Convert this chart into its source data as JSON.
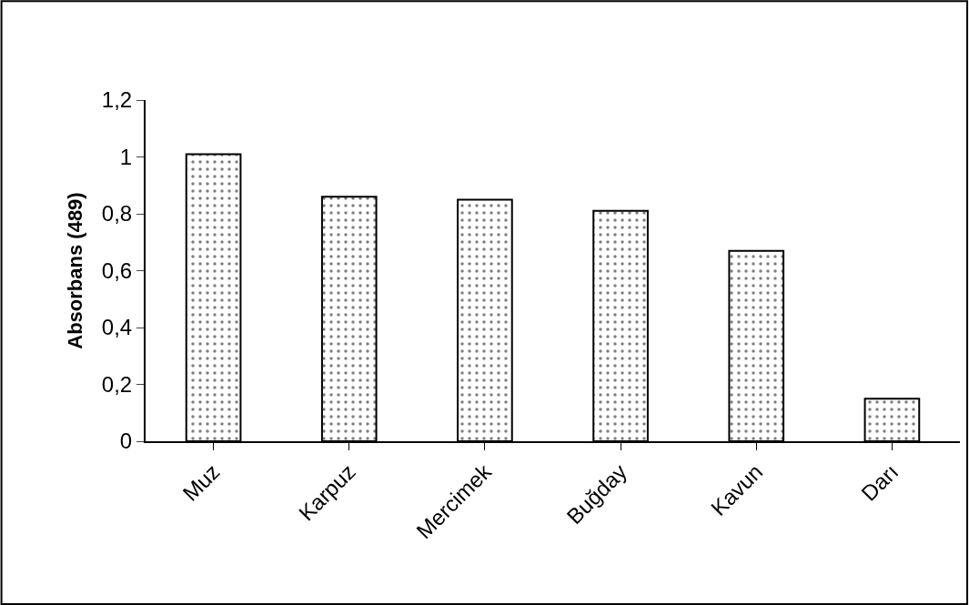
{
  "chart_data": {
    "type": "bar",
    "ylabel": "Absorbans (489)",
    "categories": [
      "Muz",
      "Karpuz",
      "Mercimek",
      "Buğday",
      "Kavun",
      "Darı"
    ],
    "values": [
      1.01,
      0.86,
      0.85,
      0.81,
      0.67,
      0.15
    ],
    "color": "#000000",
    "ylim": [
      0,
      1.2
    ],
    "yticks": [
      0,
      {
        "value": 0.2,
        "label": "0,2"
      },
      {
        "value": 0.4,
        "label": "0,4"
      },
      {
        "value": 0.6,
        "label": "0,6"
      },
      {
        "value": 0.8,
        "label": "0,8"
      },
      1,
      {
        "value": 1.2,
        "label": "1,2"
      }
    ],
    "legend": false
  }
}
